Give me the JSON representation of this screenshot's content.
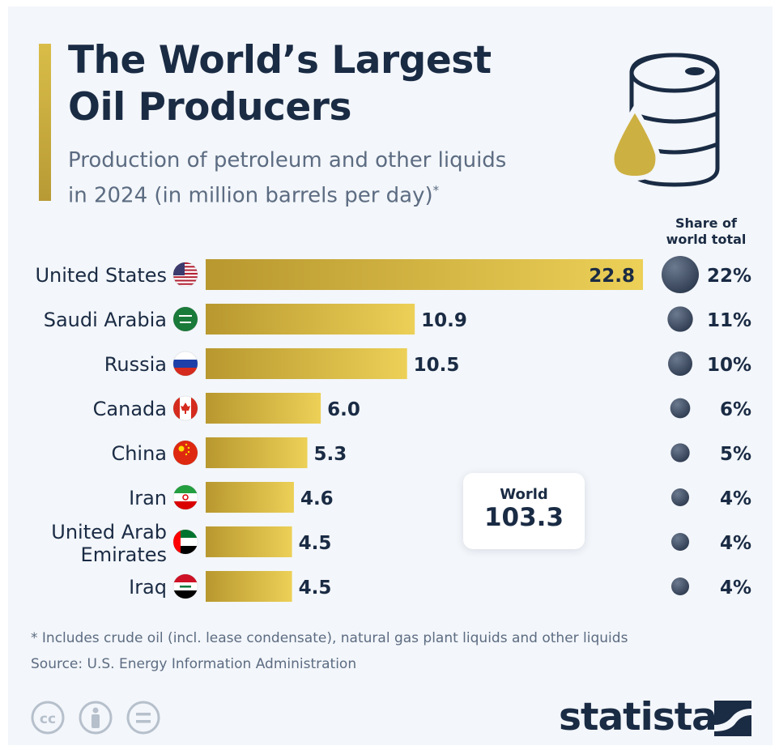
{
  "header": {
    "title_line1": "The World’s Largest",
    "title_line2": "Oil Producers",
    "subtitle_line1": "Production of petroleum and other liquids",
    "subtitle_line2": "in 2024 (in million barrels per day)",
    "subtitle_mark": "*",
    "share_header_line1": "Share of",
    "share_header_line2": "world total"
  },
  "world": {
    "label": "World",
    "value": "103.3"
  },
  "footer": {
    "footnote": "* Includes crude oil (incl. lease condensate), natural gas plant liquids and other liquids",
    "source": "Source: U.S. Energy Information Administration",
    "brand": "statista"
  },
  "colors": {
    "bar_start": "#b8982f",
    "bar_end": "#ecd057",
    "text_dark": "#1a2b44",
    "muted": "#5c6c82",
    "bubble": "#3d4a5f"
  },
  "icons": [
    "oil-barrel-icon",
    "oil-drop-icon",
    "flag-icons",
    "cc-icon",
    "attribution-icon",
    "noderivs-icon",
    "statista-logo-icon"
  ],
  "chart_data": {
    "type": "bar",
    "orientation": "horizontal",
    "categories": [
      "United States",
      "Saudi Arabia",
      "Russia",
      "Canada",
      "China",
      "Iran",
      "United Arab Emirates",
      "Iraq"
    ],
    "values": [
      22.8,
      10.9,
      10.5,
      6.0,
      5.3,
      4.6,
      4.5,
      4.5
    ],
    "value_labels": [
      "22.8",
      "10.9",
      "10.5",
      "6.0",
      "5.3",
      "4.6",
      "4.5",
      "4.5"
    ],
    "share_labels": [
      "22%",
      "11%",
      "10%",
      "6%",
      "5%",
      "4%",
      "4%",
      "4%"
    ],
    "share_values": [
      22,
      11,
      10,
      6,
      5,
      4,
      4,
      4
    ],
    "xlim": [
      0,
      22.8
    ],
    "grid": false
  }
}
